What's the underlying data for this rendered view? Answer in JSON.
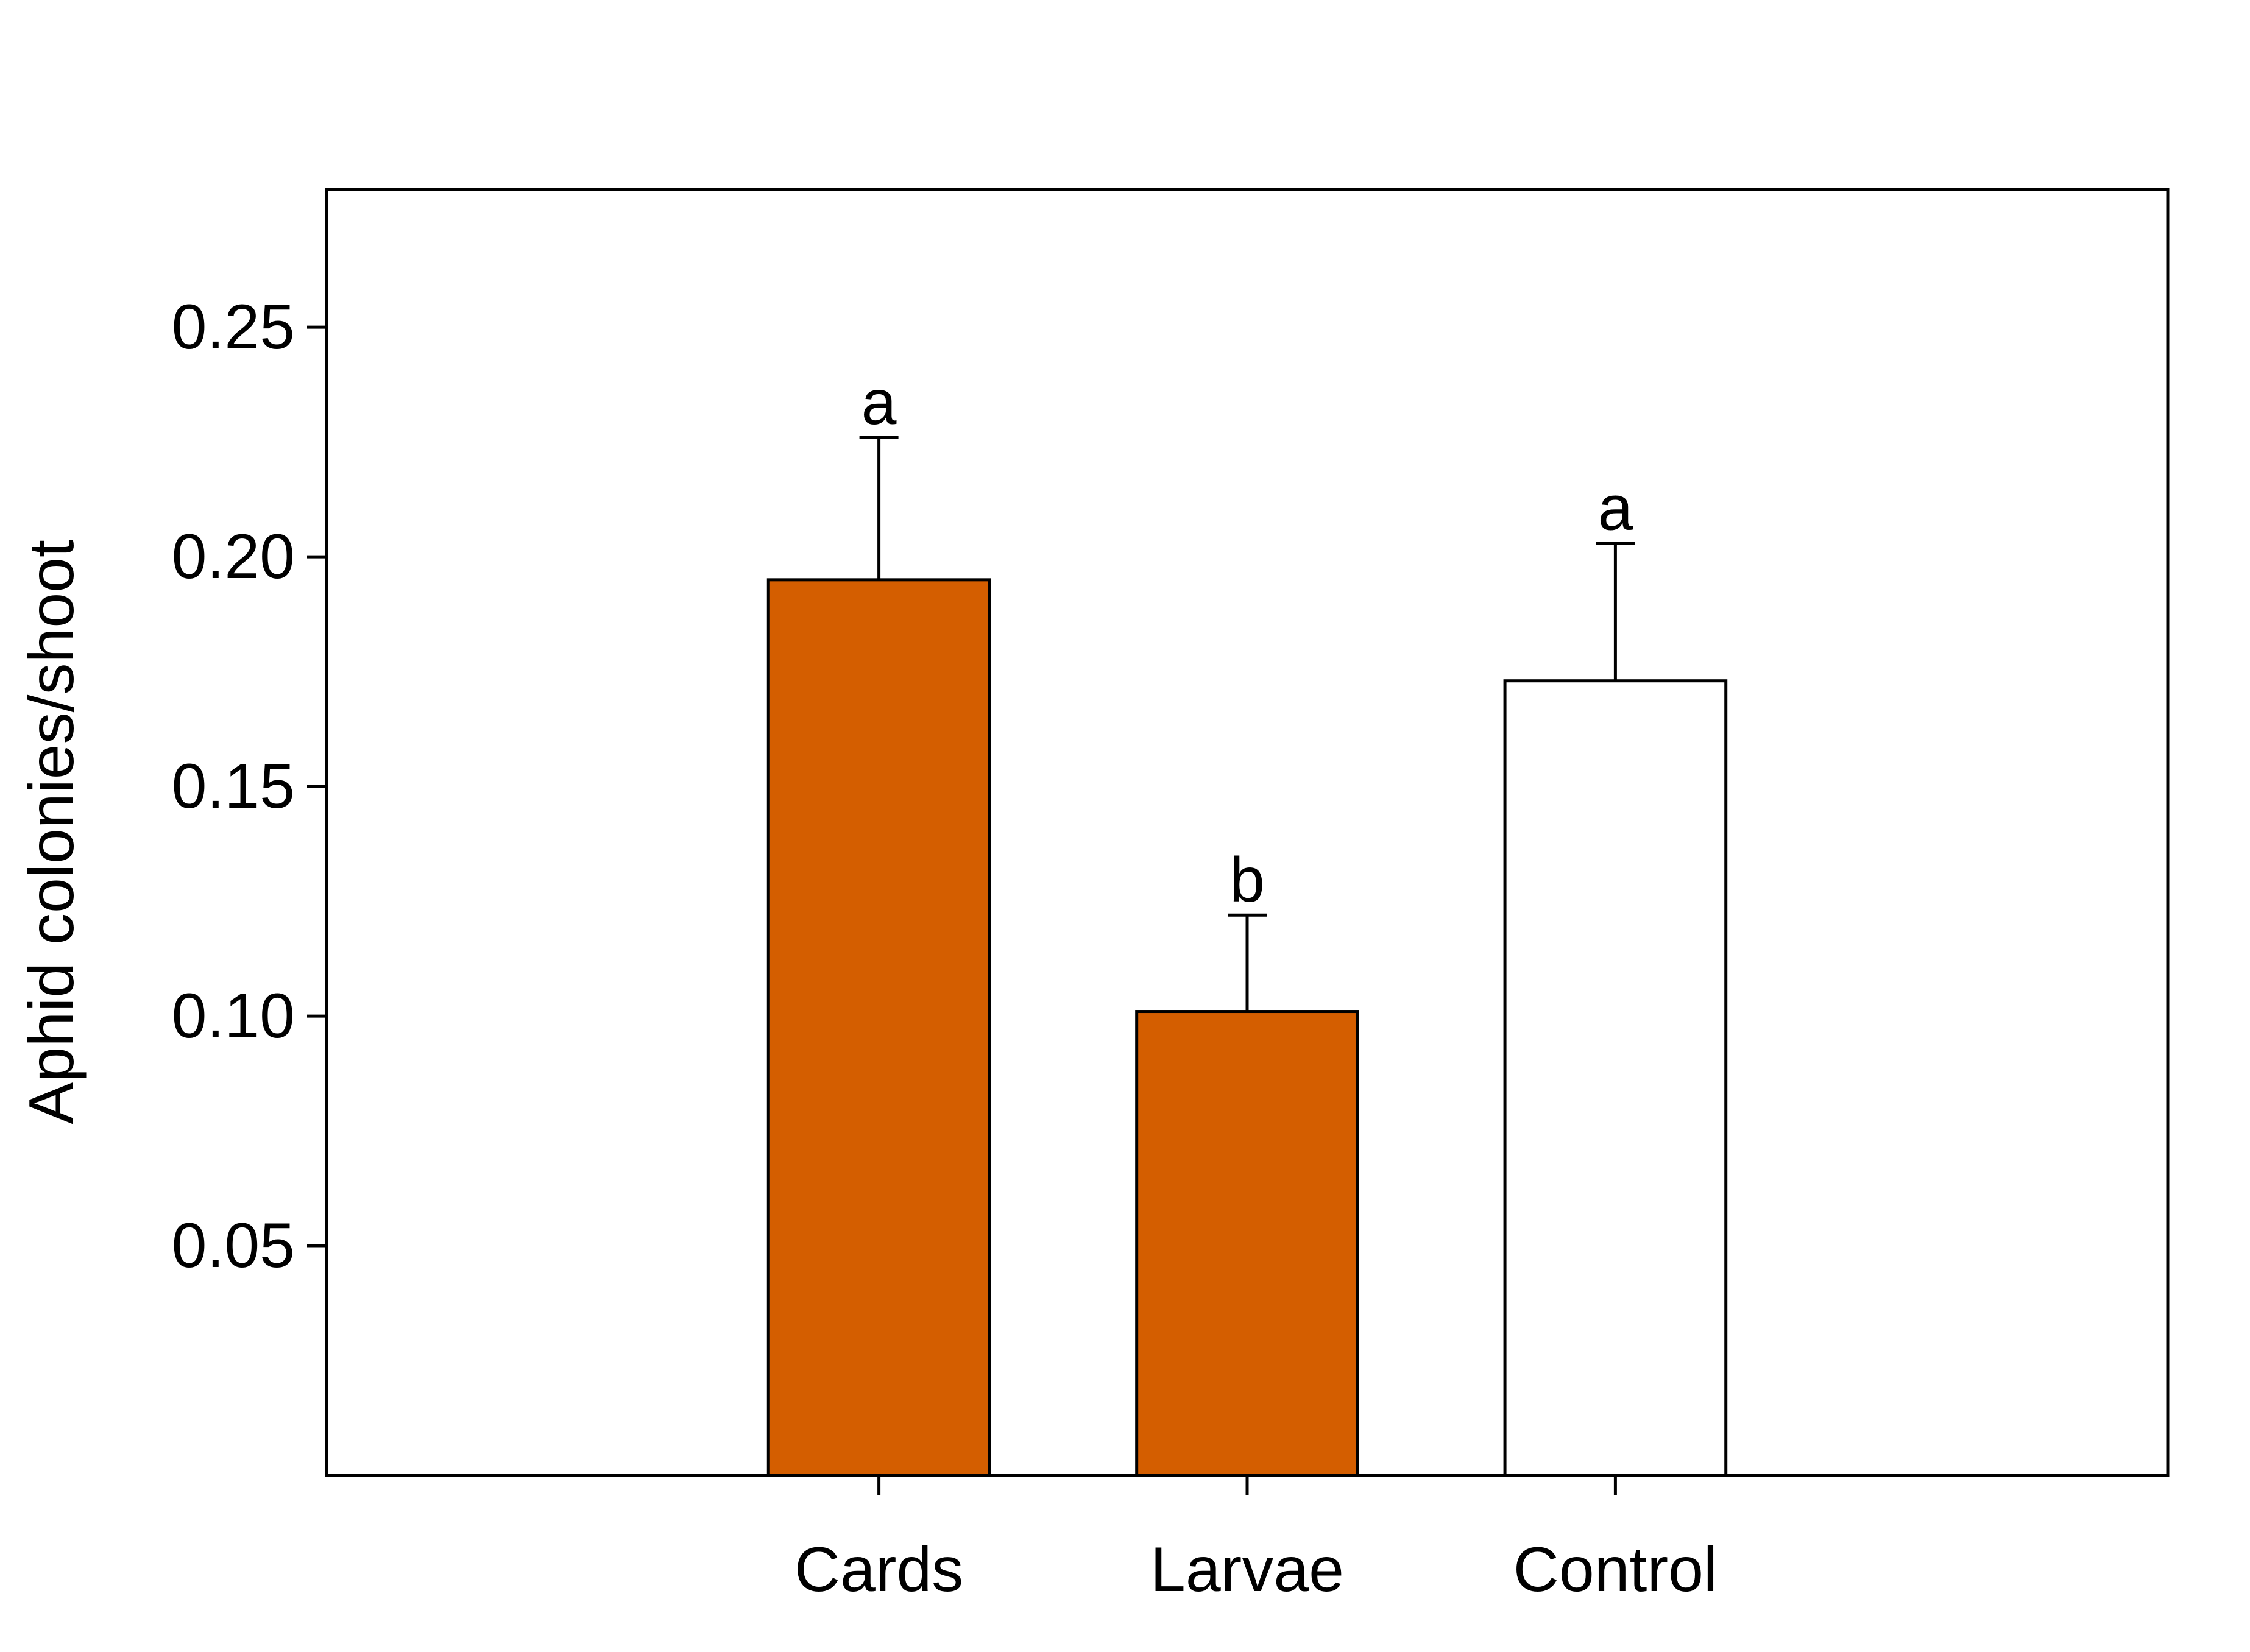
{
  "chart_data": {
    "type": "bar",
    "title": "",
    "xlabel": "",
    "ylabel": "Aphid colonies/shoot",
    "ylim": [
      0,
      0.28
    ],
    "yticks": [
      0.05,
      0.1,
      0.15,
      0.2,
      0.25
    ],
    "ytick_labels": [
      "0.05",
      "0.10",
      "0.15",
      "0.20",
      "0.25"
    ],
    "categories": [
      "Cards",
      "Larvae",
      "Control"
    ],
    "values": [
      0.195,
      0.101,
      0.173
    ],
    "errors": [
      0.031,
      0.021,
      0.03
    ],
    "significance_letters": [
      "a",
      "b",
      "a"
    ],
    "bar_colors": [
      "#D45E00",
      "#D45E00",
      "#FFFFFF"
    ],
    "grid": false,
    "legend": "none"
  }
}
